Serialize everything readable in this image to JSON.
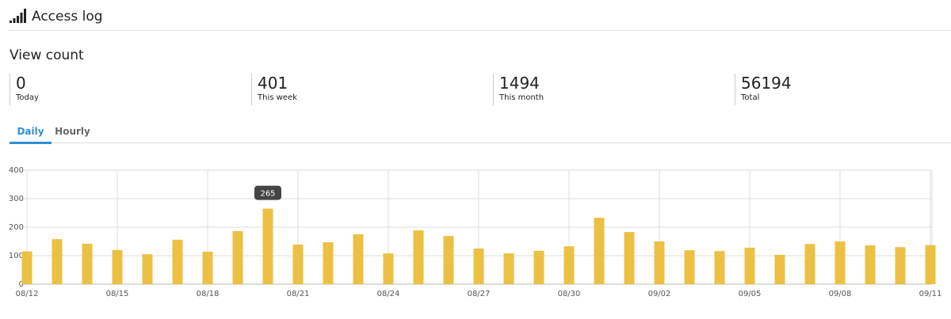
{
  "header": {
    "title": "Access log"
  },
  "section_title": "View count",
  "stats": [
    {
      "value": 0,
      "label": "Today"
    },
    {
      "value": 401,
      "label": "This week"
    },
    {
      "value": 1494,
      "label": "This month"
    },
    {
      "value": 56194,
      "label": "Total"
    }
  ],
  "tabs": [
    {
      "label": "Daily",
      "active": true
    },
    {
      "label": "Hourly",
      "active": false
    }
  ],
  "chart_data": {
    "type": "bar",
    "color": "#ecc043",
    "categories": [
      "08/12",
      null,
      null,
      "08/15",
      null,
      null,
      "08/18",
      null,
      null,
      "08/21",
      null,
      null,
      "08/24",
      null,
      null,
      "08/27",
      null,
      null,
      "08/30",
      null,
      null,
      "09/02",
      null,
      null,
      "09/05",
      null,
      null,
      "09/08",
      null,
      null,
      "09/11"
    ],
    "values": [
      115,
      158,
      142,
      120,
      105,
      156,
      114,
      186,
      265,
      139,
      147,
      175,
      108,
      189,
      169,
      125,
      108,
      117,
      133,
      233,
      183,
      150,
      119,
      116,
      128,
      103,
      141,
      150,
      136,
      130,
      137
    ],
    "ylim": [
      0,
      400
    ],
    "yticks": [
      0,
      100,
      200,
      300,
      400
    ],
    "grid": true
  }
}
